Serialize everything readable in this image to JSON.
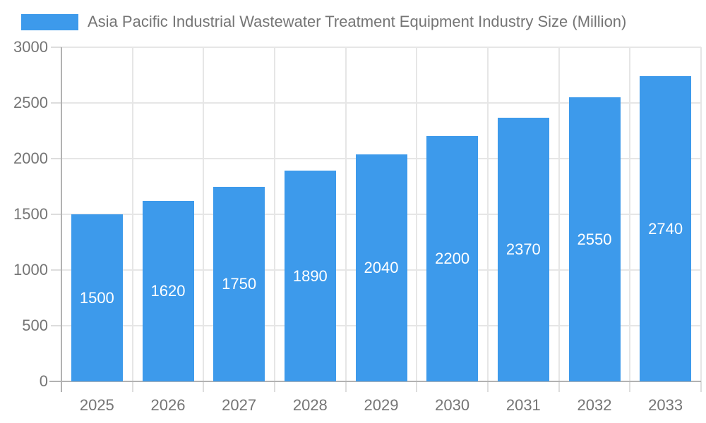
{
  "chart_data": {
    "type": "bar",
    "title": "Asia Pacific Industrial Wastewater Treatment Equipment Industry Size (Million)",
    "categories": [
      "2025",
      "2026",
      "2027",
      "2028",
      "2029",
      "2030",
      "2031",
      "2032",
      "2033"
    ],
    "values": [
      1500,
      1620,
      1750,
      1890,
      2040,
      2200,
      2370,
      2550,
      2740
    ],
    "xlabel": "",
    "ylabel": "",
    "ylim": [
      0,
      3000
    ],
    "yticks": [
      0,
      500,
      1000,
      1500,
      2000,
      2500,
      3000
    ],
    "grid": true,
    "legend_position": "top-left",
    "value_label_position": "inside-center",
    "colors": {
      "bar": "#3D9AEB",
      "grid": "#E6E6E6",
      "tick": "#DDDDDD",
      "axis": "#B2B2B2",
      "label_text": "#757575",
      "value_label_text": "#FFFFFF",
      "background": "#FFFFFF"
    }
  }
}
